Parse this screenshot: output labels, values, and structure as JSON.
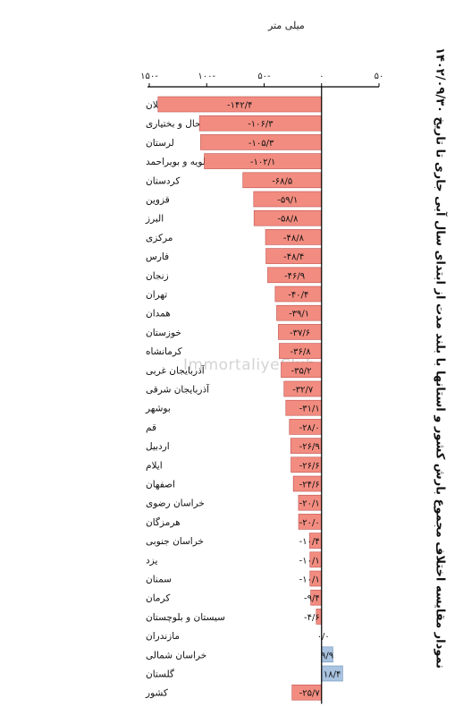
{
  "title": "نمودار مقایسه اختلاف مجموع بارش کشور و استانها با بلند مدت از ابتدای سال آبی جاری تا تاریخ ۱۴۰۲/۰۹/۳۰",
  "watermark": "ImmortaliyeClub",
  "colors": {
    "negative_bar": "#f28c80",
    "positive_bar": "#a9c3e0",
    "bar_stroke": "#c0504d",
    "positive_stroke": "#6d8fb5",
    "axis": "#000000"
  },
  "chart_data": {
    "type": "bar",
    "orientation": "horizontal",
    "ylabel": "میلی متر",
    "xlim": [
      -150,
      50
    ],
    "ticks": [
      {
        "value": -150,
        "label": "۱۵۰-"
      },
      {
        "value": -100,
        "label": "۱۰۰-"
      },
      {
        "value": -50,
        "label": "۵۰-"
      },
      {
        "value": 0,
        "label": "۰"
      },
      {
        "value": 50,
        "label": "۵۰"
      }
    ],
    "categories": [
      "گیلان",
      "چهارمحال و بختیاری",
      "لرستان",
      "کهگیلویه و بویراحمد",
      "کردستان",
      "قزوین",
      "البرز",
      "مرکزی",
      "فارس",
      "زنجان",
      "تهران",
      "همدان",
      "خوزستان",
      "کرمانشاه",
      "آذربایجان غربی",
      "آذربایجان شرقی",
      "بوشهر",
      "قم",
      "اردبیل",
      "ایلام",
      "اصفهان",
      "خراسان رضوی",
      "هرمزگان",
      "خراسان جنوبی",
      "یزد",
      "سمنان",
      "کرمان",
      "سیستان و بلوچستان",
      "مازندران",
      "خراسان شمالی",
      "گلستان",
      "کشور"
    ],
    "values": [
      -142.4,
      -106.3,
      -105.3,
      -102.1,
      -68.5,
      -59.1,
      -58.8,
      -48.8,
      -48.4,
      -46.9,
      -40.4,
      -39.1,
      -37.6,
      -36.8,
      -35.2,
      -32.7,
      -31.1,
      -28.0,
      -26.9,
      -26.6,
      -24.6,
      -20.1,
      -20.0,
      -10.4,
      -10.1,
      -10.1,
      -9.4,
      -4.6,
      0.0,
      9.9,
      18.4,
      -25.7
    ],
    "value_labels": [
      "-۱۴۲/۴",
      "-۱۰۶/۳",
      "-۱۰۵/۳",
      "-۱۰۲/۱",
      "-۶۸/۵",
      "-۵۹/۱",
      "-۵۸/۸",
      "-۴۸/۸",
      "-۴۸/۴",
      "-۴۶/۹",
      "-۴۰/۴",
      "-۳۹/۱",
      "-۳۷/۶",
      "-۳۶/۸",
      "-۳۵/۲",
      "-۳۲/۷",
      "-۳۱/۱",
      "-۲۸/۰",
      "-۲۶/۹",
      "-۲۶/۶",
      "-۲۴/۶",
      "-۲۰/۱",
      "-۲۰/۰",
      "-۱۰/۴",
      "-۱۰/۱",
      "-۱۰/۱",
      "-۹/۴",
      "-۴/۶",
      "۰/۰",
      "۹/۹",
      "۱۸/۴",
      "-۲۵/۷"
    ],
    "grid": false,
    "legend": "none"
  }
}
